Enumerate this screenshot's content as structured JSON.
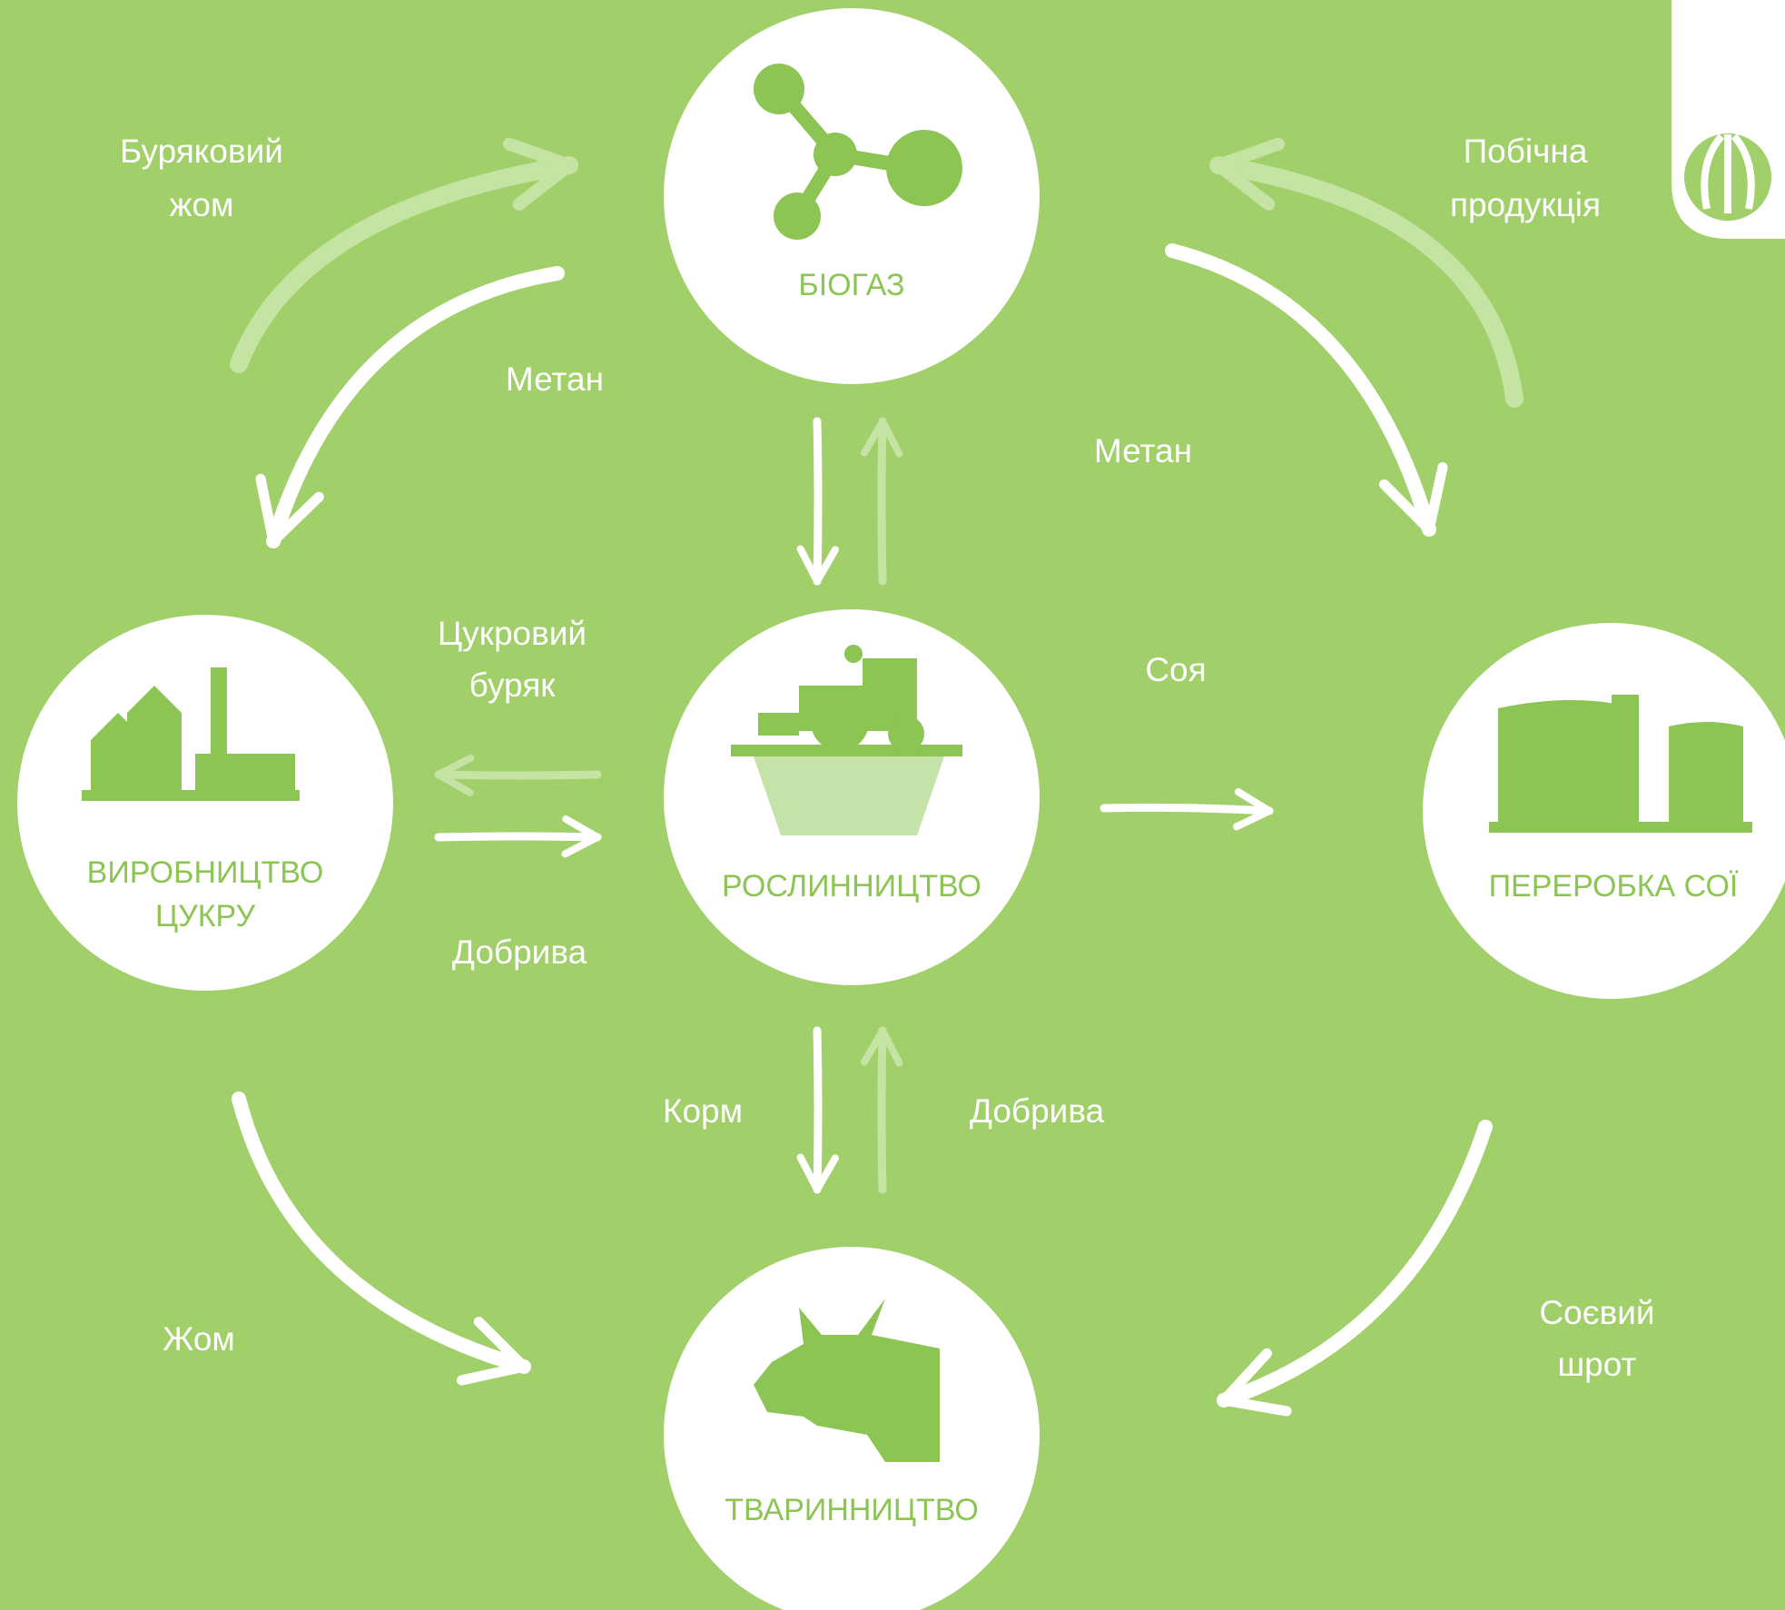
{
  "nodes": [
    {
      "label": [
        "БІОГАЗ"
      ]
    },
    {
      "label": [
        "РОСЛИННИЦТВО"
      ]
    },
    {
      "label": [
        "ВИРОБНИЦТВО",
        "ЦУКРУ"
      ]
    },
    {
      "label": [
        "ПЕРЕРОБКА СОЇ"
      ]
    },
    {
      "label": [
        "ТВАРИННИЦТВО"
      ]
    }
  ],
  "edges": [
    {
      "text": [
        "Буряковий",
        "жом"
      ]
    },
    {
      "text": [
        "Метан"
      ]
    },
    {
      "text": [
        "Побічна",
        "продукція"
      ]
    },
    {
      "text": [
        "Метан"
      ]
    },
    {
      "text": [
        "Цукровий",
        "буряк"
      ]
    },
    {
      "text": [
        "Соя"
      ]
    },
    {
      "text": [
        "Добрива"
      ]
    },
    {
      "text": [
        "Корм"
      ]
    },
    {
      "text": [
        "Добрива"
      ]
    },
    {
      "text": [
        "Жом"
      ]
    },
    {
      "text": [
        "Соєвий",
        "шрот"
      ]
    }
  ]
}
